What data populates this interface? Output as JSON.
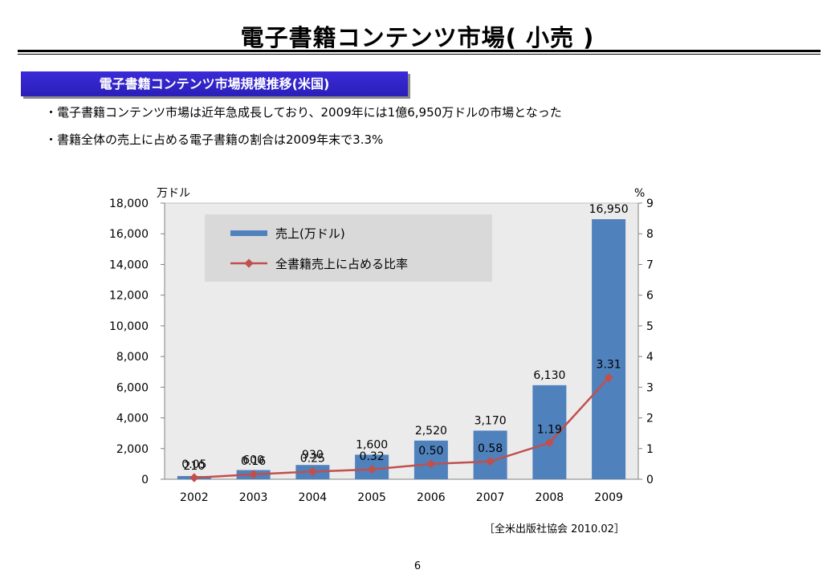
{
  "slide": {
    "title": "電子書籍コンテンツ市場( 小売 )",
    "banner": "電子書籍コンテンツ市場規模推移(米国)",
    "bullets": [
      "・電子書籍コンテンツ市場は近年急成長しており、2009年には1億6,950万ドルの市場となった",
      "・書籍全体の売上に占める電子書籍の割合は2009年末で3.3%"
    ],
    "source": "［全米出版社協会 2010.02］",
    "page_number": "6"
  },
  "chart_data": {
    "type": "bar",
    "categories": [
      "2002",
      "2003",
      "2004",
      "2005",
      "2006",
      "2007",
      "2008",
      "2009"
    ],
    "series": [
      {
        "name": "売上(万ドル)",
        "type": "bar",
        "axis": "left",
        "color": "#4f81bd",
        "values": [
          210,
          600,
          930,
          1600,
          2520,
          3170,
          6130,
          16950
        ],
        "labels": [
          "210",
          "600",
          "930",
          "1,600",
          "2,520",
          "3,170",
          "6,130",
          "16,950"
        ]
      },
      {
        "name": "全書籍売上に占める比率",
        "type": "line",
        "axis": "right",
        "color": "#c0504d",
        "values": [
          0.05,
          0.16,
          0.25,
          0.32,
          0.5,
          0.58,
          1.19,
          3.31
        ],
        "labels": [
          "0.05",
          "0.16",
          "0.25",
          "0.32",
          "0.50",
          "0.58",
          "1.19",
          "3.31"
        ]
      }
    ],
    "left_axis": {
      "unit": "万ドル",
      "ylim": [
        0,
        18000
      ],
      "ticks": [
        "0",
        "2,000",
        "4,000",
        "6,000",
        "8,000",
        "10,000",
        "12,000",
        "14,000",
        "16,000",
        "18,000"
      ]
    },
    "right_axis": {
      "unit": "%",
      "ylim": [
        0,
        9
      ],
      "ticks": [
        "0",
        "1",
        "2",
        "3",
        "4",
        "5",
        "6",
        "7",
        "8",
        "9"
      ]
    },
    "legend_position": "top-left",
    "grid": false,
    "plot_background": "#ebebeb",
    "legend_background": "#d9d9d9"
  }
}
